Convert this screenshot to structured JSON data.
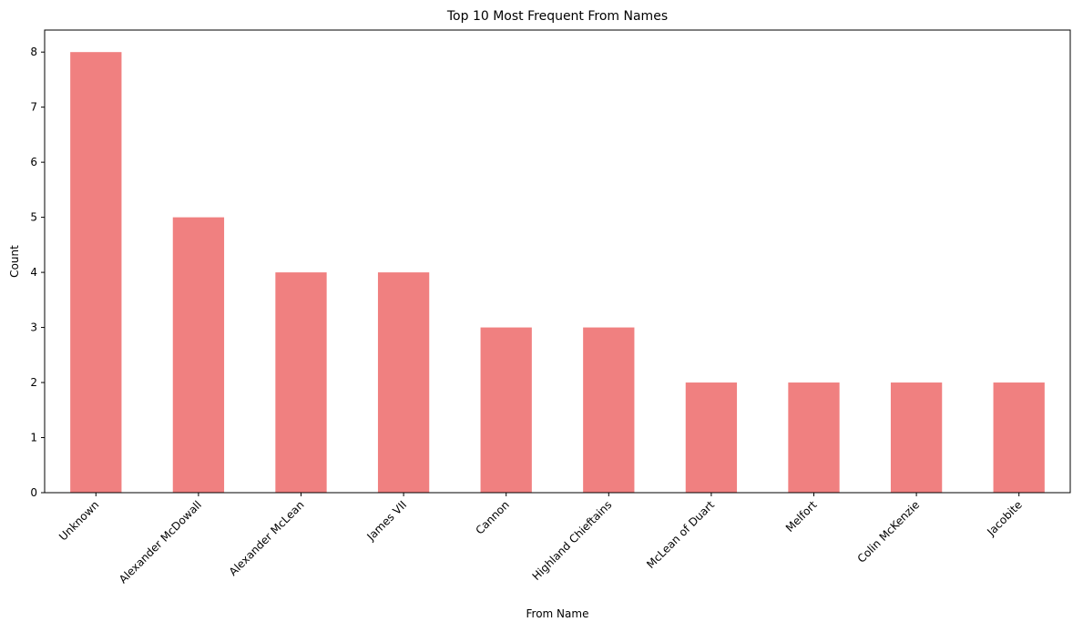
{
  "chart_data": {
    "type": "bar",
    "title": "Top 10 Most Frequent From Names",
    "xlabel": "From Name",
    "ylabel": "Count",
    "categories": [
      "Unknown",
      "Alexander McDowall",
      "Alexander McLean",
      "James VII",
      "Cannon",
      "Highland Chieftains",
      "McLean of Duart",
      "Melfort",
      "Colin McKenzie",
      "Jacobite"
    ],
    "values": [
      8,
      5,
      4,
      4,
      3,
      3,
      2,
      2,
      2,
      2
    ],
    "ylim": [
      0,
      8.4
    ],
    "yticks": [
      "0",
      "1",
      "2",
      "3",
      "4",
      "5",
      "6",
      "7",
      "8"
    ],
    "grid": false,
    "legend": "none",
    "bar_color": "#f08080",
    "axis_color": "#000000"
  }
}
